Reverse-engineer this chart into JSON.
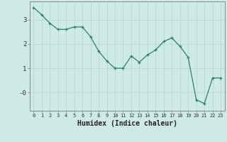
{
  "x": [
    0,
    1,
    2,
    3,
    4,
    5,
    6,
    7,
    8,
    9,
    10,
    11,
    12,
    13,
    14,
    15,
    16,
    17,
    18,
    19,
    20,
    21,
    22,
    23
  ],
  "y": [
    3.5,
    3.2,
    2.85,
    2.6,
    2.6,
    2.7,
    2.7,
    2.3,
    1.7,
    1.3,
    1.0,
    1.0,
    1.5,
    1.25,
    1.55,
    1.75,
    2.1,
    2.25,
    1.9,
    1.45,
    -0.3,
    -0.45,
    0.6,
    0.6
  ],
  "xlabel": "Humidex (Indice chaleur)",
  "ylabel": "",
  "line_color": "#2e7d6e",
  "marker": "+",
  "bg_color": "#ceeae7",
  "grid_color": "#b8d8d5",
  "axis_color": "#888888",
  "ylim": [
    -0.75,
    3.75
  ],
  "xlim": [
    -0.5,
    23.5
  ],
  "ytick_vals": [
    0,
    1,
    2,
    3
  ],
  "ytick_labels": [
    "-0",
    "1",
    "2",
    "3"
  ],
  "xtick_labels": [
    "0",
    "1",
    "2",
    "3",
    "4",
    "5",
    "6",
    "7",
    "8",
    "9",
    "10",
    "11",
    "12",
    "13",
    "14",
    "15",
    "16",
    "17",
    "18",
    "19",
    "20",
    "21",
    "22",
    "23"
  ]
}
